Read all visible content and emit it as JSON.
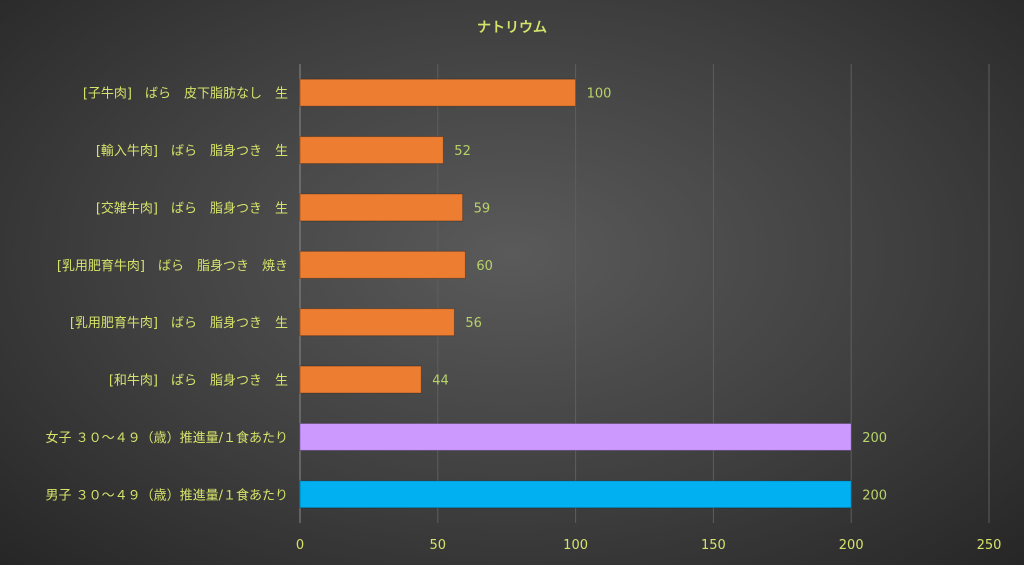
{
  "colors": {
    "text": "#d6e36a",
    "value_text": "#b8d36a",
    "grid": "#5e5e5e",
    "axis": "#8a8a8a",
    "bar_default": "#ed7d31",
    "bar_women": "#cc99ff",
    "bar_men": "#00b0f0"
  },
  "chart_data": {
    "type": "bar",
    "orientation": "horizontal",
    "title": "ナトリウム",
    "xlabel": "",
    "ylabel": "",
    "xlim": [
      0,
      250
    ],
    "xticks": [
      0,
      50,
      100,
      150,
      200,
      250
    ],
    "grid": true,
    "legend": "none",
    "categories": [
      "[子牛肉]　ばら　皮下脂肪なし　生",
      "[輸入牛肉]　ばら　脂身つき　生",
      "[交雑牛肉]　ばら　脂身つき　生",
      "[乳用肥育牛肉]　ばら　脂身つき　焼き",
      "[乳用肥育牛肉]　ばら　脂身つき　生",
      "[和牛肉]　ばら　脂身つき　生",
      "女子 ３０～４９（歳）推進量/１食あたり",
      "男子 ３０～４９（歳）推進量/１食あたり"
    ],
    "values": [
      100,
      52,
      59,
      60,
      56,
      44,
      200,
      200
    ],
    "bar_colors": [
      "#ed7d31",
      "#ed7d31",
      "#ed7d31",
      "#ed7d31",
      "#ed7d31",
      "#ed7d31",
      "#cc99ff",
      "#00b0f0"
    ]
  }
}
